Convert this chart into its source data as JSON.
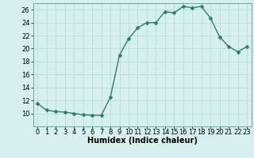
{
  "x": [
    0,
    1,
    2,
    3,
    4,
    5,
    6,
    7,
    8,
    9,
    10,
    11,
    12,
    13,
    14,
    15,
    16,
    17,
    18,
    19,
    20,
    21,
    22,
    23
  ],
  "y": [
    11.5,
    10.5,
    10.3,
    10.2,
    10.0,
    9.8,
    9.7,
    9.7,
    12.5,
    19.0,
    21.5,
    23.2,
    24.0,
    24.0,
    25.7,
    25.5,
    26.5,
    26.3,
    26.5,
    24.7,
    21.8,
    20.3,
    19.5,
    20.3
  ],
  "line_color": "#2e7d6e",
  "marker": "D",
  "marker_size": 2.5,
  "bg_color": "#d6f0ef",
  "grid_color": "#c0dedd",
  "xlabel": "Humidex (Indice chaleur)",
  "xlim": [
    -0.5,
    23.5
  ],
  "ylim": [
    8,
    27
  ],
  "yticks": [
    10,
    12,
    14,
    16,
    18,
    20,
    22,
    24,
    26
  ],
  "xticks": [
    0,
    1,
    2,
    3,
    4,
    5,
    6,
    7,
    8,
    9,
    10,
    11,
    12,
    13,
    14,
    15,
    16,
    17,
    18,
    19,
    20,
    21,
    22,
    23
  ],
  "xlabel_fontsize": 7.0,
  "tick_fontsize": 6.0,
  "linewidth": 1.0
}
